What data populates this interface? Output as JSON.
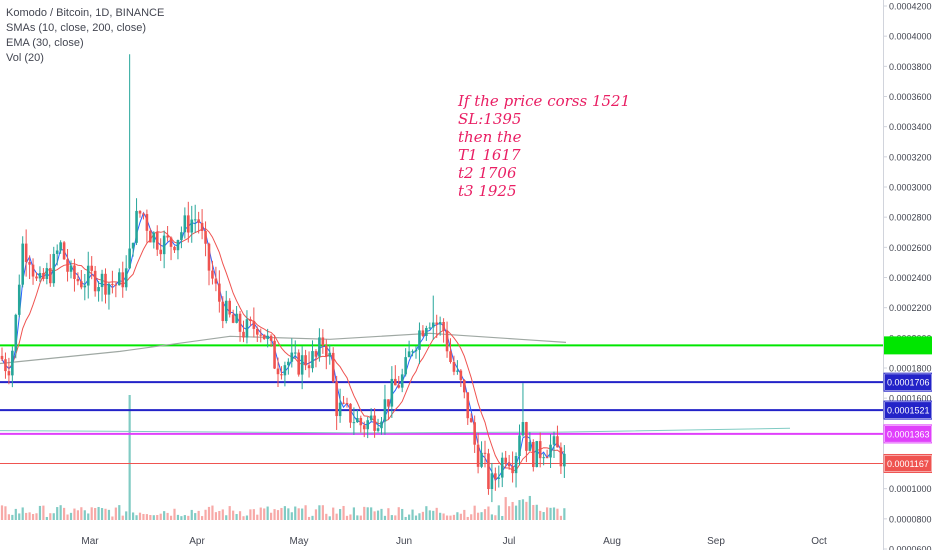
{
  "chart_data": {
    "type": "candlestick",
    "title": "Komodo / Bitcoin, 1D, BINANCE",
    "indicators": [
      "SMAs (10, close, 200, close)",
      "EMA (30, close)",
      "Vol (20)"
    ],
    "annotation": [
      "If the price corss 1521",
      "SL:1395",
      "then the",
      "T1 1617",
      "t2 1706",
      "t3 1925"
    ],
    "x_ticks": [
      "Mar",
      "Apr",
      "May",
      "Jun",
      "Jul",
      "Aug",
      "Sep",
      "Oct"
    ],
    "y_ticks": [
      "0.0000600",
      "0.0000800",
      "0.0001000",
      "0.0001200",
      "0.0001400",
      "0.0001600",
      "0.0001800",
      "0.0002000",
      "0.0002200",
      "0.0002400",
      "0.0002600",
      "0.0002800",
      "0.0003000",
      "0.0003200",
      "0.0003400",
      "0.0003600",
      "0.0003800",
      "0.0004000",
      "0.0004200"
    ],
    "ylim": [
      6e-05,
      0.00042
    ],
    "grid": false,
    "series": [
      {
        "name": "Komodo / Bitcoin",
        "ohlc_approx": [
          [
            "early Feb",
            0.000188,
            0.000186
          ],
          [
            "Feb mid",
            0.000177,
            0.000205
          ],
          [
            "Feb late",
            0.00023,
            0.000262
          ],
          [
            "Mar early",
            0.000262,
            0.000233
          ],
          [
            "Mar mid",
            0.000235,
            0.000275
          ],
          [
            "Mar mid peak high",
            0.000388,
            0.00029
          ],
          [
            "Apr start",
            0.00028,
            0.000275
          ],
          [
            "Apr mid",
            0.000236,
            0.00022
          ],
          [
            "Apr late",
            0.000205,
            0.000195
          ],
          [
            "May start",
            0.00018,
            0.000182
          ],
          [
            "May mid",
            0.00015,
            0.00014
          ],
          [
            "May late",
            0.00014,
            0.000155
          ],
          [
            "Jun start",
            0.000178,
            0.000205
          ],
          [
            "Jun peak",
            0.000205,
            0.000195
          ],
          [
            "Jun mid",
            0.00017,
            0.000155
          ],
          [
            "Jun late",
            0.00012,
            0.000105
          ],
          [
            "Jul start",
            0.000125,
            0.00014
          ],
          [
            "Jul mid",
            0.00013,
            0.00012
          ],
          [
            "last",
            0.000122,
            0.000117
          ]
        ]
      },
      {
        "name": "SMA 10",
        "color": "#2962ff"
      },
      {
        "name": "SMA 200",
        "color": "#9fa8a3"
      },
      {
        "name": "EMA 30",
        "color": "#f44336"
      },
      {
        "name": "Vol",
        "spike_date": "Mar mid"
      }
    ],
    "horizontal_lines": [
      {
        "value": 0.000195,
        "color": "#00e600",
        "label": ""
      },
      {
        "value": 0.0001706,
        "color": "#2323c8",
        "label": "0.0001706"
      },
      {
        "value": 0.0001521,
        "color": "#2323c8",
        "label": "0.0001521"
      },
      {
        "value": 0.0001363,
        "color": "#e040fb",
        "label": "0.0001363"
      },
      {
        "value": 0.0001167,
        "color": "#ef5350",
        "label": "0.0001167"
      }
    ]
  },
  "colors": {
    "up": "#26a69a",
    "down": "#ef5350",
    "axis_text": "#434651",
    "border": "#d1d4dc"
  }
}
